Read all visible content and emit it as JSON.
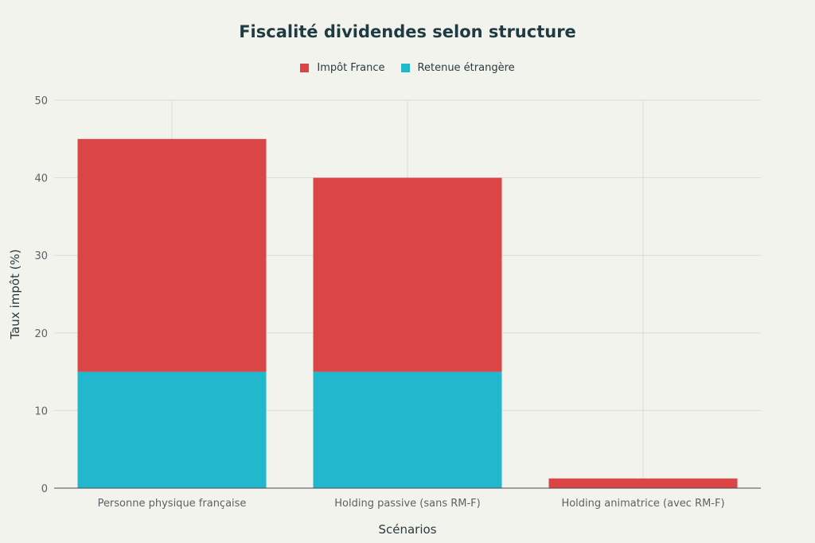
{
  "chart_data": {
    "type": "bar",
    "stacked": true,
    "title": "Fiscalité dividendes selon structure",
    "xlabel": "Scénarios",
    "ylabel": "Taux impôt (%)",
    "categories": [
      "Personne physique française",
      "Holding passive (sans RM-F)",
      "Holding animatrice (avec RM-F)"
    ],
    "series": [
      {
        "name": "Retenue étrangère",
        "color": "#21b8cd",
        "values": [
          15,
          15,
          0
        ]
      },
      {
        "name": "Impôt France",
        "color": "#db4545",
        "values": [
          30,
          25,
          1.25
        ]
      }
    ],
    "legend_order": [
      "Impôt France",
      "Retenue étrangère"
    ],
    "legend_position": "top-center",
    "ylim": [
      0,
      50
    ],
    "yticks": [
      0,
      10,
      20,
      30,
      40,
      50
    ],
    "grid": true
  }
}
